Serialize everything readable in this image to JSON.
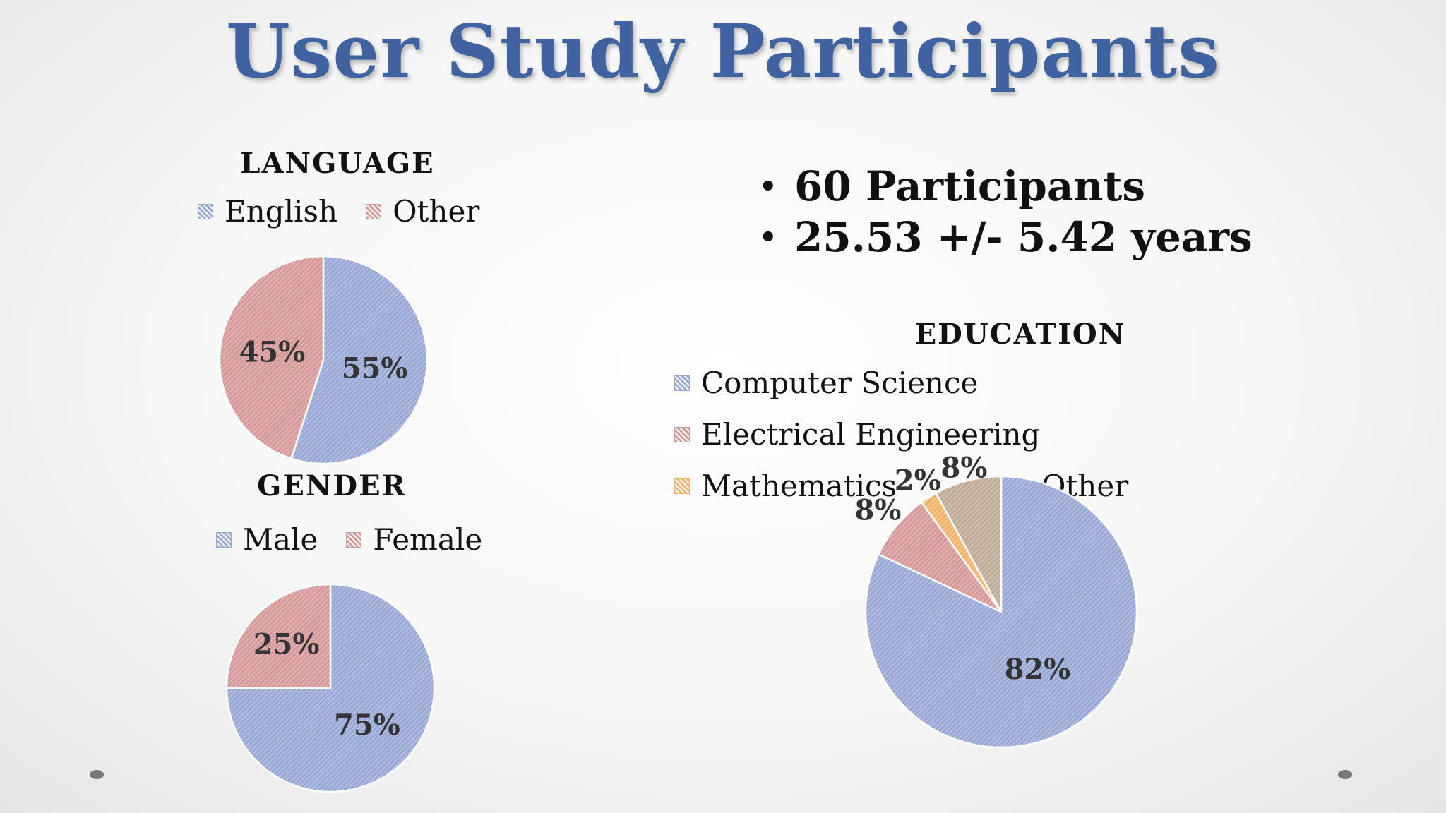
{
  "slide": {
    "title": "User Study Participants",
    "bullets": [
      "60 Participants",
      "25.53 +/- 5.42 years"
    ]
  },
  "colors": {
    "title": "#3f62a0",
    "blue": "#9aa9d6",
    "red": "#d79a9a",
    "orange": "#f0b56a",
    "tan": "#c0ab98"
  },
  "chart_data": [
    {
      "type": "pie",
      "title": "LANGUAGE",
      "categories": [
        "English",
        "Other"
      ],
      "values": [
        55,
        45
      ],
      "labels": [
        "55%",
        "45%"
      ],
      "colors": [
        "#9aa9d6",
        "#d79a9a"
      ],
      "legend": "top"
    },
    {
      "type": "pie",
      "title": "GENDER",
      "categories": [
        "Male",
        "Female"
      ],
      "values": [
        75,
        25
      ],
      "labels": [
        "75%",
        "25%"
      ],
      "colors": [
        "#9aa9d6",
        "#d79a9a"
      ],
      "legend": "top"
    },
    {
      "type": "pie",
      "title": "EDUCATION",
      "categories": [
        "Computer Science",
        "Electrical Engineering",
        "Mathematics",
        "Other"
      ],
      "values": [
        82,
        8,
        2,
        8
      ],
      "labels": [
        "82%",
        "8%",
        "2%",
        "8%"
      ],
      "colors": [
        "#9aa9d6",
        "#d79a9a",
        "#f0b56a",
        "#c0ab98"
      ],
      "legend": "top"
    }
  ]
}
